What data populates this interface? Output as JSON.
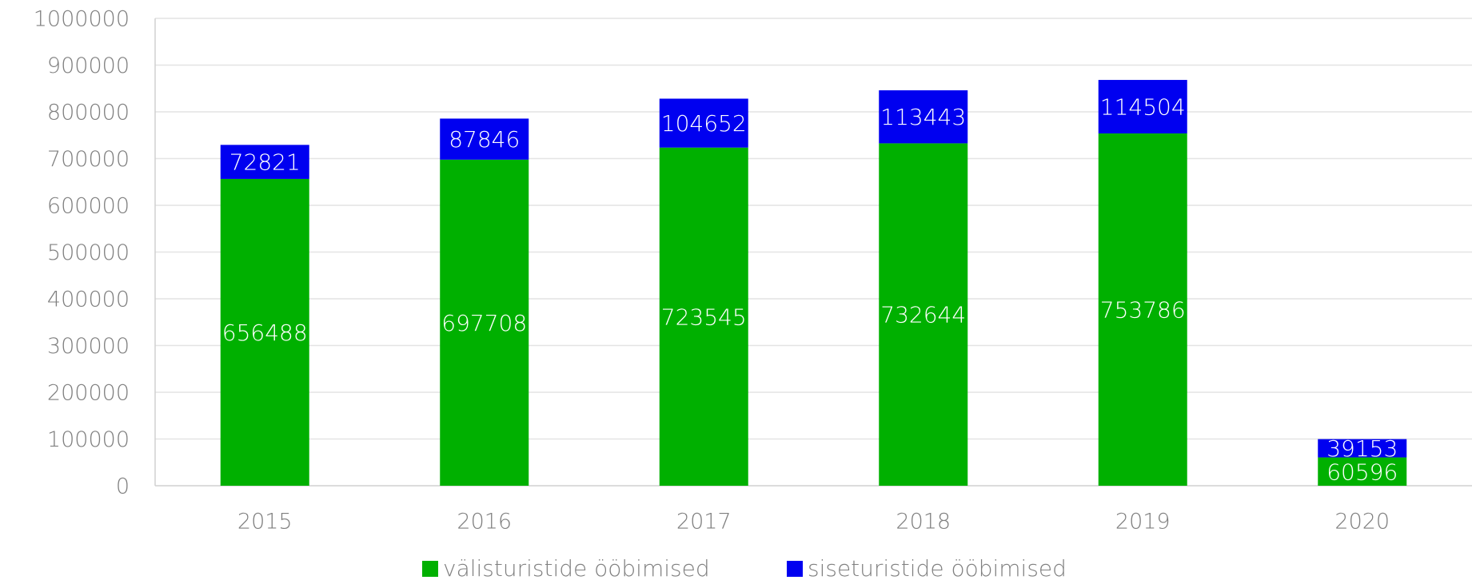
{
  "chart_data": {
    "type": "stacked_bar",
    "categories": [
      "2015",
      "2016",
      "2017",
      "2018",
      "2019",
      "2020"
    ],
    "series": [
      {
        "name": "välisturistide ööbimised",
        "color": "#00b000",
        "values": [
          656488,
          697708,
          723545,
          732644,
          753786,
          60596
        ]
      },
      {
        "name": "siseturistide ööbimised",
        "color": "#0000f0",
        "values": [
          72821,
          87846,
          104652,
          113443,
          114504,
          39153
        ]
      }
    ],
    "ylim": [
      0,
      1000000
    ],
    "yticks": [
      0,
      100000,
      200000,
      300000,
      400000,
      500000,
      600000,
      700000,
      800000,
      900000,
      1000000
    ],
    "grid": true,
    "legend": "bottom"
  }
}
